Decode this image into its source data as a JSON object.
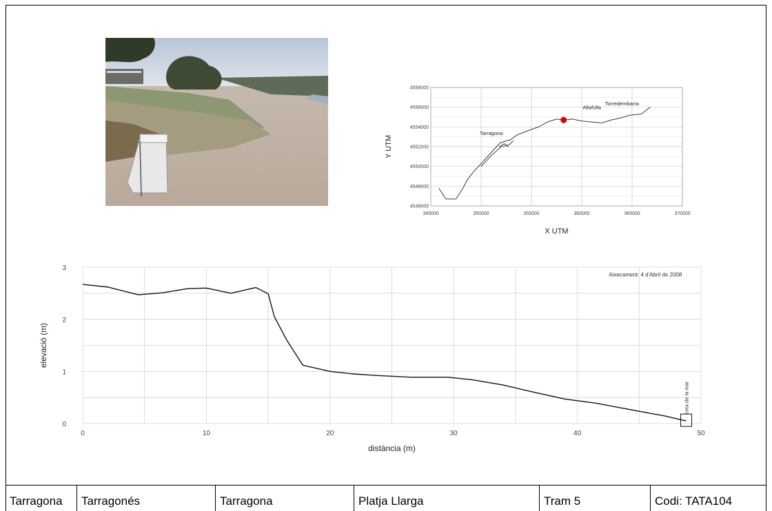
{
  "location_map": {
    "x_axis_label": "X UTM",
    "y_axis_label": "Y UTM",
    "x_ticks": [
      "345000",
      "350000",
      "355000",
      "360000",
      "365000",
      "370000"
    ],
    "y_ticks": [
      "4546000",
      "4548000",
      "4550000",
      "4552000",
      "4554000",
      "4556000",
      "4558000"
    ],
    "xlim": [
      345000,
      370000
    ],
    "ylim": [
      4546000,
      4558000
    ],
    "towns": [
      {
        "name": "Tarragona",
        "x": 351000,
        "y": 4553200
      },
      {
        "name": "Altafulla",
        "x": 361000,
        "y": 4555800
      },
      {
        "name": "Torredembarra",
        "x": 364000,
        "y": 4556200
      }
    ],
    "marker": {
      "x": 358200,
      "y": 4554700,
      "color": "#e00000"
    },
    "coastline": [
      [
        345800,
        4547800
      ],
      [
        346500,
        4546700
      ],
      [
        347500,
        4546700
      ],
      [
        348200,
        4547800
      ],
      [
        348600,
        4548600
      ],
      [
        349200,
        4549400
      ],
      [
        350100,
        4550400
      ],
      [
        351000,
        4551400
      ],
      [
        351900,
        4552400
      ],
      [
        352900,
        4552700
      ],
      [
        353600,
        4553200
      ],
      [
        354600,
        4553600
      ],
      [
        355700,
        4554000
      ],
      [
        356600,
        4554500
      ],
      [
        357500,
        4554800
      ],
      [
        358200,
        4554700
      ],
      [
        359000,
        4554800
      ],
      [
        360000,
        4554600
      ],
      [
        361000,
        4554500
      ],
      [
        362000,
        4554400
      ],
      [
        362900,
        4554700
      ],
      [
        363800,
        4554900
      ],
      [
        364800,
        4555200
      ],
      [
        365900,
        4555300
      ],
      [
        366800,
        4556000
      ]
    ],
    "port_lines": [
      [
        [
          350000,
          4550000
        ],
        [
          351000,
          4551100
        ],
        [
          352000,
          4552000
        ],
        [
          352800,
          4552200
        ],
        [
          353200,
          4552600
        ]
      ],
      [
        [
          351800,
          4552000
        ],
        [
          352300,
          4552300
        ],
        [
          352700,
          4552000
        ]
      ]
    ]
  },
  "chart_data": {
    "type": "line",
    "title": "",
    "xlabel": "distància (m)",
    "ylabel": "elevació (m)",
    "xlim": [
      0,
      50
    ],
    "ylim": [
      0,
      3
    ],
    "x_ticks": [
      "0",
      "10",
      "20",
      "30",
      "40",
      "50"
    ],
    "y_ticks": [
      "0",
      "1",
      "2",
      "3"
    ],
    "grid": true,
    "annotation": "Aixecament: 4 d'Abril de 2008",
    "sea_label": "cota de la mar",
    "sea_marker": {
      "x": 48.8,
      "y": 0.05
    },
    "series": [
      {
        "x": [
          0,
          2,
          4.5,
          6.5,
          8.5,
          10,
          12,
          14,
          15,
          15.5,
          16.5,
          17.8,
          20,
          22,
          24,
          26.5,
          29.5,
          31.5,
          34,
          36.5,
          39,
          41.5,
          44,
          46,
          47,
          48.8
        ],
        "y": [
          2.67,
          2.62,
          2.47,
          2.51,
          2.59,
          2.6,
          2.5,
          2.61,
          2.49,
          2.05,
          1.6,
          1.12,
          1.0,
          0.95,
          0.92,
          0.89,
          0.89,
          0.84,
          0.74,
          0.6,
          0.47,
          0.39,
          0.28,
          0.19,
          0.15,
          0.05
        ]
      }
    ]
  },
  "footer": {
    "cells": [
      "Tarragona",
      "Tarragonés",
      "Tarragona",
      "Platja Llarga",
      "Tram 5",
      "Codi: TATA104"
    ]
  }
}
